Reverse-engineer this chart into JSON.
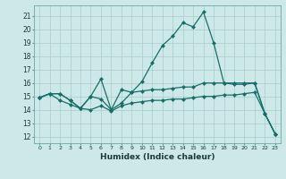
{
  "xlabel": "Humidex (Indice chaleur)",
  "background_color": "#cce8e8",
  "grid_color": "#aacccc",
  "line_color": "#1a6e6a",
  "xlim": [
    -0.5,
    23.5
  ],
  "ylim": [
    11.5,
    21.8
  ],
  "xticks": [
    0,
    1,
    2,
    3,
    4,
    5,
    6,
    7,
    8,
    9,
    10,
    11,
    12,
    13,
    14,
    15,
    16,
    17,
    18,
    19,
    20,
    21,
    22,
    23
  ],
  "yticks": [
    12,
    13,
    14,
    15,
    16,
    17,
    18,
    19,
    20,
    21
  ],
  "line_top_x": [
    0,
    1,
    2,
    3,
    4,
    5,
    6,
    7,
    8,
    9,
    10,
    11,
    12,
    13,
    14,
    15,
    16,
    17,
    18,
    19,
    20,
    21,
    22,
    23
  ],
  "line_top_y": [
    14.9,
    15.2,
    15.2,
    14.7,
    14.1,
    15.0,
    16.3,
    14.0,
    15.5,
    15.3,
    16.1,
    17.5,
    18.8,
    19.5,
    20.5,
    20.2,
    21.3,
    19.0,
    16.0,
    15.9,
    15.9,
    16.0,
    13.7,
    12.2
  ],
  "line_mid_x": [
    0,
    1,
    2,
    3,
    4,
    5,
    6,
    7,
    8,
    9,
    10,
    11,
    12,
    13,
    14,
    15,
    16,
    17,
    18,
    19,
    20,
    21,
    22,
    23
  ],
  "line_mid_y": [
    14.9,
    15.2,
    15.2,
    14.7,
    14.1,
    15.0,
    14.8,
    14.0,
    14.5,
    15.3,
    15.4,
    15.5,
    15.5,
    15.6,
    15.7,
    15.7,
    16.0,
    16.0,
    16.0,
    16.0,
    16.0,
    16.0,
    13.7,
    12.2
  ],
  "line_bot_x": [
    0,
    1,
    2,
    3,
    4,
    5,
    6,
    7,
    8,
    9,
    10,
    11,
    12,
    13,
    14,
    15,
    16,
    17,
    18,
    19,
    20,
    21,
    22,
    23
  ],
  "line_bot_y": [
    14.9,
    15.2,
    14.7,
    14.4,
    14.1,
    14.0,
    14.3,
    13.9,
    14.3,
    14.5,
    14.6,
    14.7,
    14.7,
    14.8,
    14.8,
    14.9,
    15.0,
    15.0,
    15.1,
    15.1,
    15.2,
    15.3,
    13.7,
    12.2
  ]
}
